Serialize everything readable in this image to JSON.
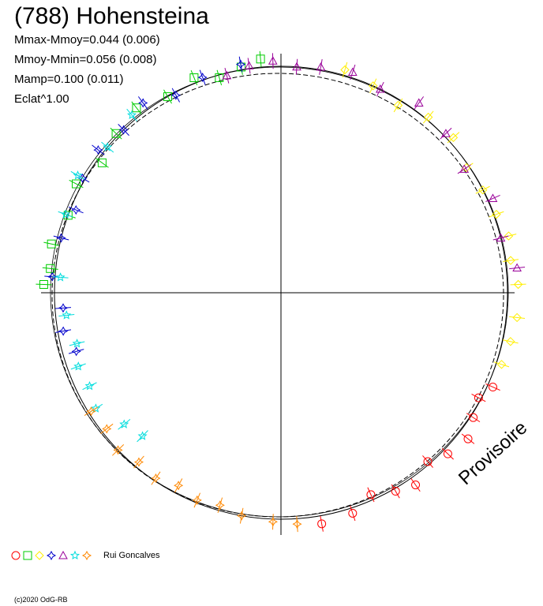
{
  "header": {
    "title": "(788) Hohensteina",
    "stat_1": "Mmax-Mmoy=0.044 (0.006)",
    "stat_2": "Mmoy-Mmin=0.056 (0.008)",
    "stat_3": "Mamp=0.100 (0.011)",
    "stat_4": "Eclat^1.00"
  },
  "watermark": "Provisoire",
  "legend": {
    "observer": "Rui Goncalves"
  },
  "copyright": "(c)2020 OdG-RB",
  "chart_data": {
    "type": "scatter",
    "description": "polar lightcurve",
    "mean_radius": 1.0,
    "grid": "axes through center",
    "series": [
      {
        "marker": "circle",
        "color": "#ff0000",
        "angles_deg": [
          -80,
          -72,
          -66,
          -60,
          -55,
          -49,
          -44,
          -38,
          -33,
          -28,
          -24
        ],
        "residuals": [
          0.03,
          0.02,
          -0.02,
          0.01,
          0.03,
          -0.01,
          0.02,
          0.04,
          0.01,
          -0.01,
          0.02
        ]
      },
      {
        "marker": "square",
        "color": "#00cc00",
        "angles_deg": [
          95,
          100,
          106,
          112,
          120,
          128,
          136,
          144,
          152,
          160,
          168,
          174,
          178
        ],
        "residuals": [
          0.03,
          0.01,
          -0.01,
          0.02,
          0.0,
          0.03,
          0.01,
          -0.02,
          0.02,
          0.0,
          0.03,
          0.02,
          0.04
        ]
      },
      {
        "marker": "diamond",
        "color": "#ffee00",
        "angles_deg": [
          2,
          8,
          14,
          20,
          27,
          34,
          42,
          50,
          58,
          66,
          74,
          -6,
          -12,
          -18
        ],
        "residuals": [
          0.04,
          0.02,
          0.03,
          0.01,
          0.0,
          -0.01,
          0.02,
          0.01,
          -0.02,
          0.0,
          0.02,
          0.04,
          0.03,
          0.02
        ]
      },
      {
        "marker": "star4",
        "color": "#0000cc",
        "angles_deg": [
          100,
          110,
          118,
          126,
          134,
          142,
          150,
          158,
          166,
          176,
          184,
          190,
          196
        ],
        "residuals": [
          0.02,
          0.01,
          -0.01,
          0.03,
          0.0,
          0.02,
          0.01,
          -0.02,
          0.0,
          0.01,
          -0.03,
          -0.02,
          -0.05
        ]
      },
      {
        "marker": "triangle",
        "color": "#990099",
        "angles_deg": [
          6,
          14,
          24,
          34,
          44,
          54,
          64,
          72,
          80,
          86,
          92,
          98,
          104
        ],
        "residuals": [
          0.04,
          0.0,
          0.02,
          -0.02,
          0.01,
          0.03,
          0.0,
          0.02,
          0.01,
          0.0,
          0.02,
          0.01,
          -0.01
        ]
      },
      {
        "marker": "star5",
        "color": "#00dddd",
        "angles_deg": [
          130,
          140,
          150,
          160,
          176,
          186,
          194,
          200,
          206,
          212,
          220,
          226
        ],
        "residuals": [
          0.02,
          0.0,
          0.03,
          0.01,
          -0.02,
          -0.04,
          -0.06,
          -0.04,
          -0.05,
          -0.03,
          -0.08,
          -0.1
        ]
      },
      {
        "marker": "diamond4",
        "color": "#ff8800",
        "angles_deg": [
          -100,
          -106,
          -112,
          -118,
          -124,
          -130,
          -136,
          -142,
          -148,
          -92,
          -86
        ],
        "residuals": [
          0.0,
          -0.02,
          -0.01,
          -0.03,
          -0.01,
          -0.02,
          0.0,
          -0.02,
          -0.01,
          0.01,
          0.02
        ]
      }
    ]
  }
}
